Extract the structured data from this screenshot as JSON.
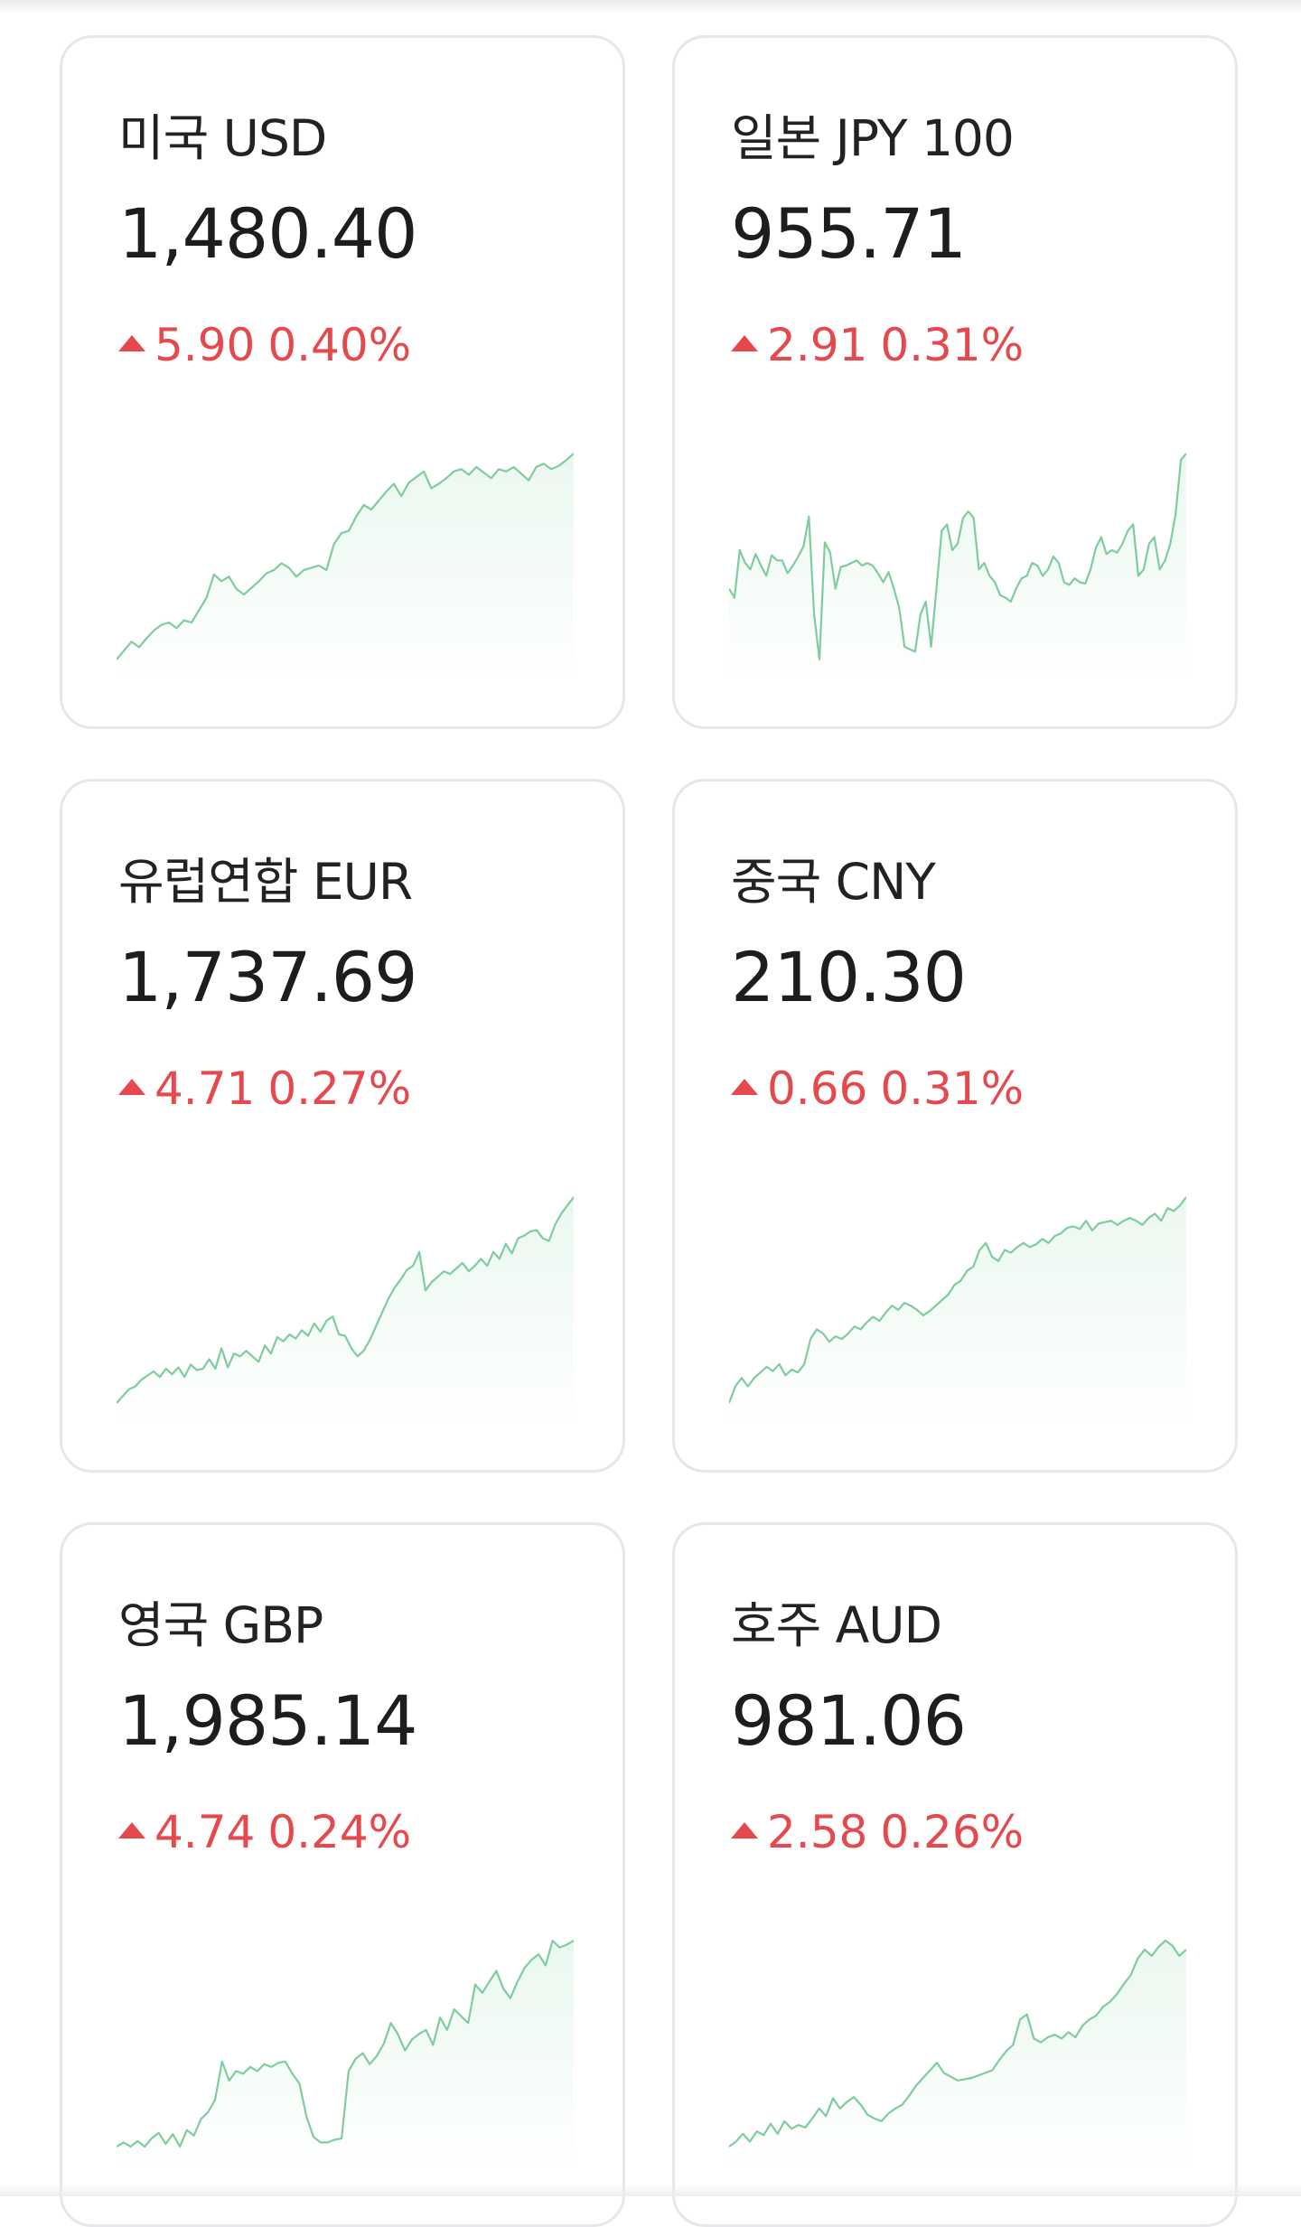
{
  "colors": {
    "up": "#e5484d",
    "line": "#7fcc9e",
    "fill": "#d9f2e3",
    "border": "#e6e7ea"
  },
  "icons": {
    "change_direction": "triangle-up-icon"
  },
  "currencies": [
    {
      "label": "미국 USD",
      "rate": "1,480.40",
      "change": "5.90",
      "percent": "0.40%",
      "trend": [
        0,
        8,
        16,
        11,
        19,
        26,
        31,
        33,
        28,
        35,
        33,
        44,
        55,
        76,
        70,
        74,
        63,
        58,
        64,
        70,
        77,
        80,
        86,
        82,
        74,
        80,
        82,
        84,
        80,
        103,
        113,
        115,
        128,
        138,
        134,
        142,
        150,
        157,
        146,
        158,
        163,
        168,
        153,
        157,
        162,
        168,
        170,
        165,
        172,
        167,
        162,
        170,
        168,
        172,
        166,
        160,
        172,
        175,
        170,
        173,
        178,
        184
      ]
    },
    {
      "label": "일본 JPY 100",
      "rate": "955.71",
      "change": "2.91",
      "percent": "0.31%",
      "trend": [
        40,
        33,
        70,
        60,
        55,
        67,
        58,
        50,
        66,
        62,
        62,
        52,
        58,
        65,
        73,
        96,
        20,
        -15,
        76,
        68,
        40,
        57,
        58,
        60,
        62,
        58,
        60,
        58,
        52,
        45,
        53,
        40,
        25,
        -5,
        -7,
        -9,
        20,
        30,
        -5,
        40,
        85,
        90,
        70,
        75,
        95,
        100,
        95,
        55,
        60,
        50,
        45,
        35,
        33,
        30,
        40,
        48,
        50,
        60,
        58,
        50,
        55,
        65,
        60,
        45,
        43,
        48,
        45,
        44,
        55,
        72,
        80,
        67,
        70,
        68,
        75,
        85,
        90,
        50,
        55,
        75,
        80,
        55,
        62,
        75,
        98,
        140,
        145
      ]
    },
    {
      "label": "유럽연합 EUR",
      "rate": "1,737.69",
      "change": "4.71",
      "percent": "0.27%",
      "trend": [
        0,
        5,
        10,
        12,
        17,
        20,
        23,
        19,
        25,
        21,
        26,
        19,
        28,
        24,
        25,
        32,
        25,
        40,
        26,
        36,
        34,
        38,
        34,
        30,
        42,
        36,
        48,
        45,
        50,
        47,
        53,
        49,
        58,
        52,
        60,
        63,
        50,
        49,
        40,
        34,
        38,
        46,
        56,
        66,
        76,
        84,
        90,
        97,
        100,
        110,
        82,
        88,
        92,
        96,
        94,
        98,
        102,
        96,
        100,
        105,
        100,
        110,
        105,
        116,
        109,
        120,
        122,
        125,
        126,
        120,
        118,
        130,
        138,
        144,
        150
      ]
    },
    {
      "label": "중국 CNY",
      "rate": "210.30",
      "change": "0.66",
      "percent": "0.31%",
      "trend": [
        0,
        12,
        18,
        12,
        18,
        22,
        26,
        23,
        28,
        20,
        24,
        22,
        28,
        46,
        53,
        50,
        44,
        48,
        46,
        50,
        55,
        53,
        58,
        62,
        59,
        65,
        70,
        67,
        72,
        70,
        67,
        63,
        66,
        70,
        74,
        78,
        85,
        88,
        95,
        98,
        110,
        115,
        105,
        102,
        110,
        108,
        112,
        115,
        112,
        114,
        118,
        115,
        120,
        122,
        126,
        127,
        125,
        131,
        124,
        129,
        130,
        131,
        128,
        131,
        133,
        131,
        128,
        133,
        136,
        131,
        140,
        138,
        142,
        148
      ]
    },
    {
      "label": "영국 GBP",
      "rate": "1,985.14",
      "change": "4.74",
      "percent": "0.24%",
      "trend": [
        0,
        3,
        0,
        4,
        0,
        6,
        10,
        2,
        9,
        0,
        12,
        8,
        20,
        25,
        34,
        62,
        48,
        55,
        53,
        58,
        55,
        60,
        58,
        61,
        62,
        53,
        46,
        22,
        7,
        3,
        3,
        5,
        6,
        55,
        64,
        68,
        60,
        66,
        75,
        90,
        82,
        70,
        78,
        82,
        85,
        74,
        94,
        85,
        100,
        95,
        90,
        118,
        112,
        120,
        128,
        115,
        108,
        120,
        130,
        136,
        140,
        132,
        150,
        145,
        147,
        150
      ]
    },
    {
      "label": "호주 AUD",
      "rate": "981.06",
      "change": "2.58",
      "percent": "0.26%",
      "trend": [
        0,
        4,
        10,
        4,
        12,
        9,
        18,
        10,
        20,
        14,
        17,
        15,
        22,
        30,
        24,
        38,
        30,
        35,
        39,
        33,
        25,
        22,
        20,
        26,
        30,
        33,
        40,
        48,
        54,
        60,
        66,
        58,
        55,
        52,
        53,
        54,
        56,
        58,
        60,
        68,
        75,
        80,
        100,
        104,
        85,
        82,
        86,
        88,
        85,
        90,
        86,
        95,
        100,
        103,
        110,
        114,
        120,
        128,
        135,
        148,
        155,
        150,
        157,
        162,
        158,
        150,
        155
      ]
    }
  ]
}
